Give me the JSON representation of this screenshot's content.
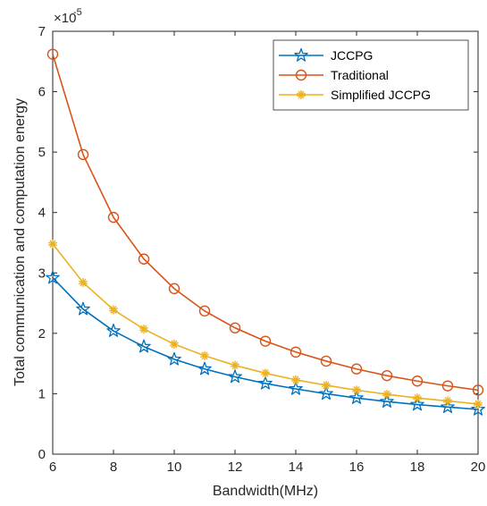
{
  "chart_data": {
    "type": "line",
    "title": "",
    "xlabel": "Bandwidth(MHz)",
    "ylabel": "Total communication and computation energy",
    "y_multiplier_label": "×10",
    "y_multiplier_exponent": "-5",
    "xlim": [
      6,
      20
    ],
    "ylim": [
      0,
      7
    ],
    "x_ticks": [
      6,
      8,
      10,
      12,
      14,
      16,
      18,
      20
    ],
    "y_ticks": [
      0,
      1,
      2,
      3,
      4,
      5,
      6,
      7
    ],
    "grid": false,
    "legend_position": "top-right",
    "x": [
      6,
      7,
      8,
      9,
      10,
      11,
      12,
      13,
      14,
      15,
      16,
      17,
      18,
      19,
      20
    ],
    "series": [
      {
        "name": "JCCPG",
        "color": "#0072bd",
        "marker": "pentagram",
        "values": [
          2.92,
          2.4,
          2.04,
          1.78,
          1.57,
          1.41,
          1.28,
          1.17,
          1.08,
          1.0,
          0.93,
          0.87,
          0.82,
          0.78,
          0.74
        ]
      },
      {
        "name": "Traditional",
        "color": "#d95319",
        "marker": "circle",
        "values": [
          6.62,
          4.96,
          3.92,
          3.23,
          2.74,
          2.37,
          2.09,
          1.87,
          1.69,
          1.54,
          1.41,
          1.3,
          1.21,
          1.13,
          1.06
        ]
      },
      {
        "name": "Simplified JCCPG",
        "color": "#edb120",
        "marker": "asterisk",
        "values": [
          3.48,
          2.84,
          2.39,
          2.07,
          1.82,
          1.63,
          1.47,
          1.34,
          1.23,
          1.14,
          1.06,
          0.99,
          0.93,
          0.88,
          0.83
        ]
      }
    ]
  }
}
